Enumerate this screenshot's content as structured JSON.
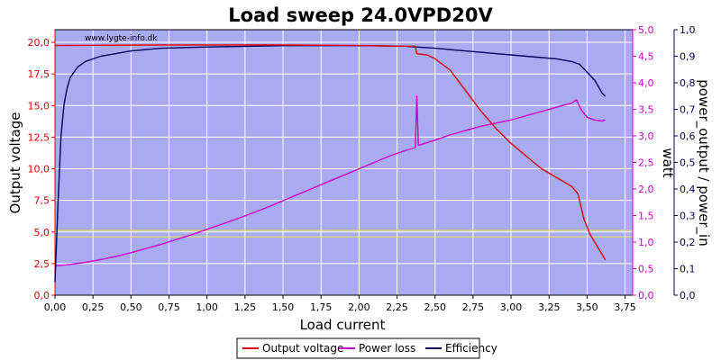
{
  "chart_data": {
    "type": "line",
    "title": "Load sweep 24.0VPD20V",
    "watermark": "www.lygte-info.dk",
    "xlabel": "Load current",
    "xlim": [
      0,
      3.8
    ],
    "x_ticks": [
      "0,00",
      "0,25",
      "0,50",
      "0,75",
      "1,00",
      "1,25",
      "1,50",
      "1,75",
      "2,00",
      "2,25",
      "2,50",
      "2,75",
      "3,00",
      "3,25",
      "3,50",
      "3,75"
    ],
    "x_tick_values": [
      0,
      0.25,
      0.5,
      0.75,
      1.0,
      1.25,
      1.5,
      1.75,
      2.0,
      2.25,
      2.5,
      2.75,
      3.0,
      3.25,
      3.5,
      3.75
    ],
    "y_left": {
      "label": "Output voltage",
      "color": "#e00000",
      "lim": [
        0,
        21
      ],
      "ticks": [
        "0,0",
        "2,5",
        "5,0",
        "7,5",
        "10,0",
        "12,5",
        "15,0",
        "17,5",
        "20,0"
      ],
      "tick_values": [
        0,
        2.5,
        5,
        7.5,
        10,
        12.5,
        15,
        17.5,
        20
      ]
    },
    "y_right_power": {
      "label": "watt",
      "color": "#cc00cc",
      "lim": [
        0,
        5.0
      ],
      "ticks": [
        "0,0",
        "0,5",
        "1,0",
        "1,5",
        "2,0",
        "2,5",
        "3,0",
        "3,5",
        "4,0",
        "4,5",
        "5,0"
      ],
      "tick_values": [
        0,
        0.5,
        1,
        1.5,
        2,
        2.5,
        3,
        3.5,
        4,
        4.5,
        5
      ]
    },
    "y_right_eff": {
      "label": "power_output / power_in",
      "color": "#000060",
      "lim": [
        0,
        1.0
      ],
      "ticks": [
        "0,0",
        "0,1",
        "0,2",
        "0,3",
        "0,4",
        "0,5",
        "0,6",
        "0,7",
        "0,8",
        "0,9",
        "1,0"
      ],
      "tick_values": [
        0,
        0.1,
        0.2,
        0.3,
        0.4,
        0.5,
        0.6,
        0.7,
        0.8,
        0.9,
        1.0
      ]
    },
    "reference_lines": {
      "axis": "power",
      "values": [
        1.1,
        1.22
      ],
      "color": "#e8e850"
    },
    "colors": {
      "plot_bg": "#aaaaf0",
      "grid": "#ffffff"
    },
    "series": [
      {
        "name": "Output voltage",
        "axis": "voltage",
        "color": "#e00000",
        "points": [
          [
            0,
            19.75
          ],
          [
            0.5,
            19.78
          ],
          [
            1.0,
            19.8
          ],
          [
            1.5,
            19.8
          ],
          [
            2.0,
            19.75
          ],
          [
            2.3,
            19.7
          ],
          [
            2.37,
            19.7
          ],
          [
            2.38,
            19.1
          ],
          [
            2.45,
            19.0
          ],
          [
            2.5,
            18.7
          ],
          [
            2.6,
            17.8
          ],
          [
            2.7,
            16.2
          ],
          [
            2.8,
            14.6
          ],
          [
            2.9,
            13.2
          ],
          [
            3.0,
            12.0
          ],
          [
            3.1,
            11.0
          ],
          [
            3.2,
            10.0
          ],
          [
            3.3,
            9.3
          ],
          [
            3.4,
            8.6
          ],
          [
            3.44,
            8.0
          ],
          [
            3.48,
            6.0
          ],
          [
            3.52,
            4.8
          ],
          [
            3.56,
            4.0
          ],
          [
            3.6,
            3.2
          ],
          [
            3.62,
            2.8
          ]
        ]
      },
      {
        "name": "Power loss",
        "axis": "power",
        "color": "#cc00cc",
        "points": [
          [
            0.0,
            0.55
          ],
          [
            0.1,
            0.58
          ],
          [
            0.2,
            0.62
          ],
          [
            0.3,
            0.67
          ],
          [
            0.4,
            0.73
          ],
          [
            0.5,
            0.8
          ],
          [
            0.6,
            0.88
          ],
          [
            0.7,
            0.96
          ],
          [
            0.8,
            1.05
          ],
          [
            0.9,
            1.14
          ],
          [
            1.0,
            1.24
          ],
          [
            1.1,
            1.34
          ],
          [
            1.2,
            1.44
          ],
          [
            1.3,
            1.55
          ],
          [
            1.4,
            1.66
          ],
          [
            1.5,
            1.78
          ],
          [
            1.6,
            1.9
          ],
          [
            1.7,
            2.02
          ],
          [
            1.8,
            2.14
          ],
          [
            1.9,
            2.26
          ],
          [
            2.0,
            2.38
          ],
          [
            2.1,
            2.5
          ],
          [
            2.2,
            2.62
          ],
          [
            2.3,
            2.72
          ],
          [
            2.37,
            2.78
          ],
          [
            2.38,
            3.75
          ],
          [
            2.39,
            2.82
          ],
          [
            2.5,
            2.92
          ],
          [
            2.6,
            3.02
          ],
          [
            2.7,
            3.1
          ],
          [
            2.8,
            3.18
          ],
          [
            2.9,
            3.24
          ],
          [
            3.0,
            3.3
          ],
          [
            3.1,
            3.38
          ],
          [
            3.2,
            3.46
          ],
          [
            3.3,
            3.54
          ],
          [
            3.4,
            3.62
          ],
          [
            3.43,
            3.68
          ],
          [
            3.46,
            3.5
          ],
          [
            3.5,
            3.35
          ],
          [
            3.55,
            3.3
          ],
          [
            3.6,
            3.28
          ],
          [
            3.62,
            3.3
          ]
        ]
      },
      {
        "name": "Efficiency",
        "axis": "efficiency",
        "color": "#000060",
        "points": [
          [
            0.0,
            0.05
          ],
          [
            0.02,
            0.35
          ],
          [
            0.04,
            0.6
          ],
          [
            0.06,
            0.72
          ],
          [
            0.08,
            0.78
          ],
          [
            0.1,
            0.82
          ],
          [
            0.15,
            0.86
          ],
          [
            0.2,
            0.88
          ],
          [
            0.3,
            0.9
          ],
          [
            0.4,
            0.91
          ],
          [
            0.5,
            0.92
          ],
          [
            0.7,
            0.93
          ],
          [
            1.0,
            0.935
          ],
          [
            1.5,
            0.94
          ],
          [
            2.0,
            0.94
          ],
          [
            2.3,
            0.938
          ],
          [
            2.5,
            0.93
          ],
          [
            2.7,
            0.92
          ],
          [
            2.9,
            0.91
          ],
          [
            3.1,
            0.9
          ],
          [
            3.3,
            0.89
          ],
          [
            3.4,
            0.88
          ],
          [
            3.45,
            0.87
          ],
          [
            3.5,
            0.84
          ],
          [
            3.55,
            0.81
          ],
          [
            3.6,
            0.76
          ],
          [
            3.62,
            0.75
          ]
        ]
      }
    ],
    "legend": {
      "placement": "bottom-center",
      "entries": [
        "Output voltage",
        "Power loss",
        "Efficiency"
      ]
    }
  }
}
